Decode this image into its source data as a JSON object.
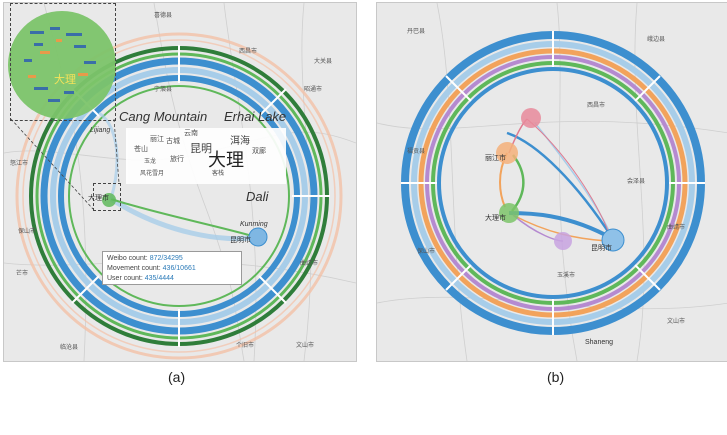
{
  "panel_a": {
    "subfigure_label": "(a)",
    "landmarks": {
      "cang_mountain": "Cang Mountain",
      "erhai_lake": "Erhai Lake",
      "lijiang": "Lijiang",
      "dali": "Dali",
      "kunming": "Kunming"
    },
    "zoom_label": "大理",
    "city_labels": {
      "dali_city": "大理市",
      "kunming_city": "昆明市"
    },
    "word_cloud": [
      "大理",
      "昆明",
      "丽江",
      "洱海",
      "苍山",
      "古城",
      "旅行",
      "云南",
      "玉龙",
      "双廊",
      "客栈",
      "风花雪月"
    ],
    "tooltip": {
      "weibo_label": "Weibo count:",
      "weibo_value": "872/34295",
      "movement_label": "Movement count:",
      "movement_value": "436/10661",
      "user_label": "User count:",
      "user_value": "435/4444"
    }
  },
  "panel_b": {
    "subfigure_label": "(b)",
    "city_labels": {
      "kunming": "昆明市",
      "dali": "大理市",
      "lijiang": "丽江市",
      "shaneng": "Shaneng"
    }
  },
  "colors": {
    "blue": "#3d8fcf",
    "light_blue": "#a7cde9",
    "green": "#5fb85a",
    "dark_green": "#2f7d3a",
    "orange": "#f2a35c",
    "salmon": "#f3c1a6",
    "purple": "#b58ad0",
    "pink": "#e07a8f",
    "map_bg": "#e9e9e9"
  }
}
